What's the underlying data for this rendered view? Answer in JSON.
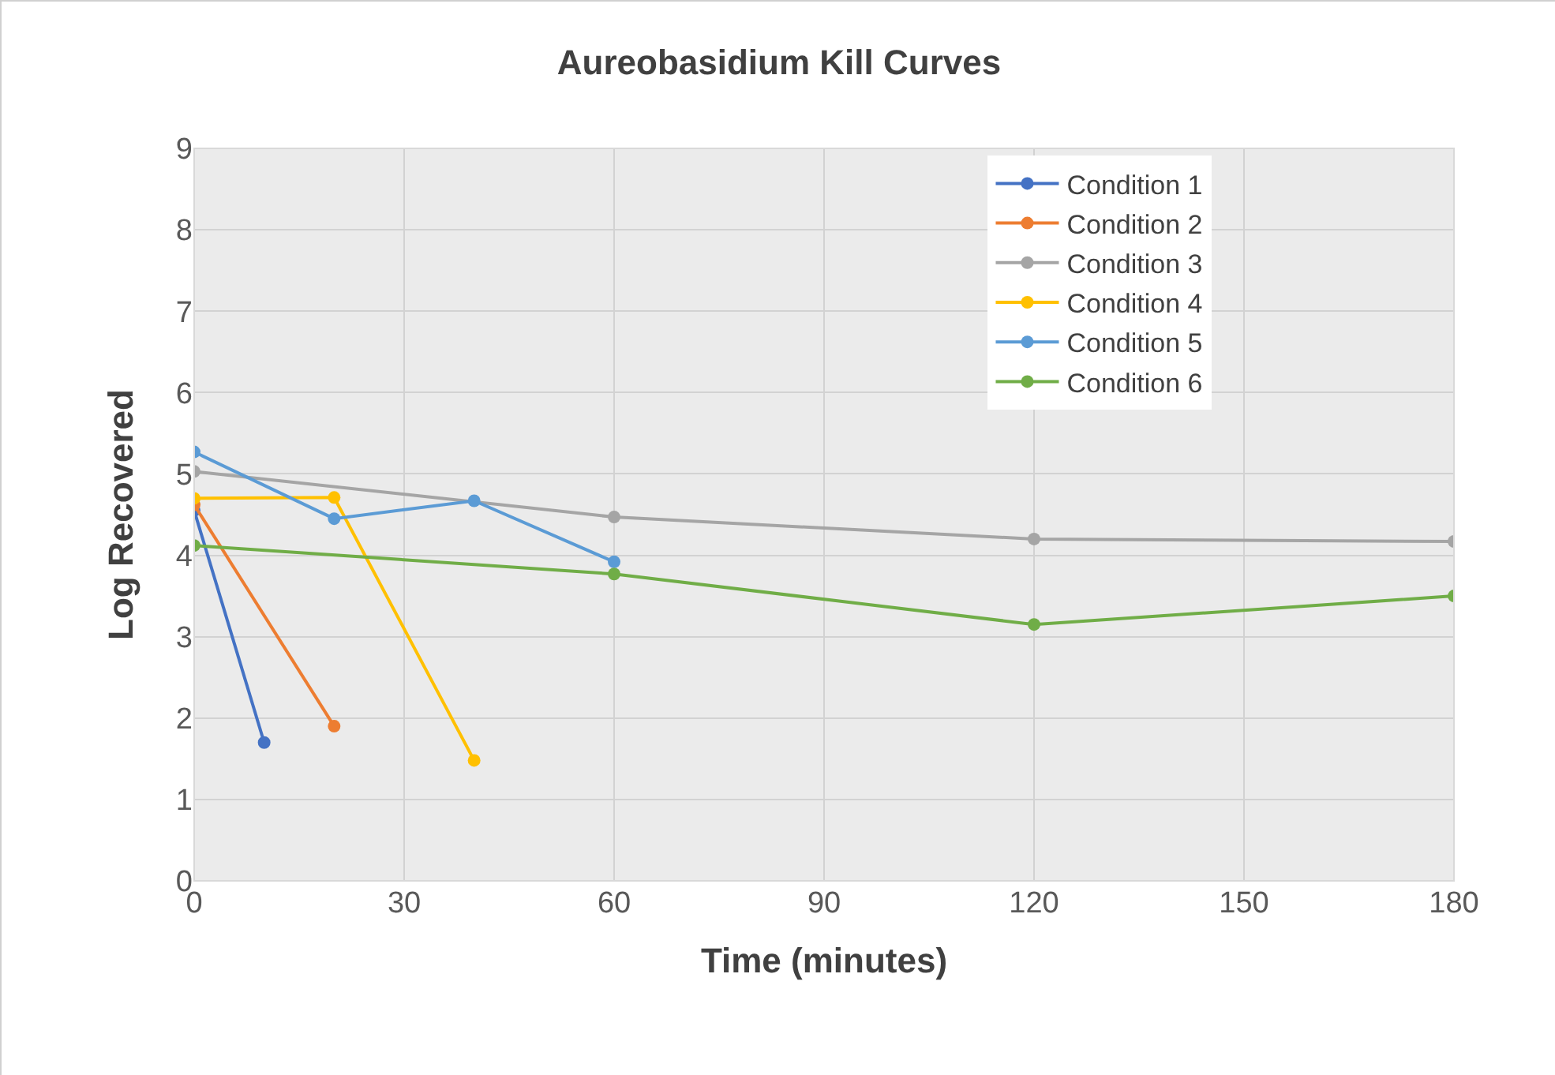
{
  "chart_data": {
    "type": "line",
    "title": "Aureobasidium Kill Curves",
    "xlabel": "Time (minutes)",
    "ylabel": "Log Recovered",
    "xlim": [
      0,
      180
    ],
    "xticks": [
      0,
      30,
      60,
      90,
      120,
      150,
      180
    ],
    "ylim": [
      0,
      9
    ],
    "yticks": [
      0,
      1,
      2,
      3,
      4,
      5,
      6,
      7,
      8,
      9
    ],
    "grid": true,
    "legend": "top right",
    "marker": "circle",
    "line_style": "solid",
    "series": [
      {
        "name": "Condition 1",
        "color": "#4472c4",
        "x": [
          0,
          10
        ],
        "values": [
          4.55,
          1.7
        ]
      },
      {
        "name": "Condition 2",
        "color": "#ed7d31",
        "x": [
          0,
          20
        ],
        "values": [
          4.62,
          1.9
        ]
      },
      {
        "name": "Condition 3",
        "color": "#a5a5a5",
        "x": [
          0,
          60,
          120,
          180
        ],
        "values": [
          5.03,
          4.47,
          4.2,
          4.17
        ]
      },
      {
        "name": "Condition 4",
        "color": "#ffc000",
        "x": [
          0,
          20,
          40
        ],
        "values": [
          4.7,
          4.71,
          1.48
        ]
      },
      {
        "name": "Condition 5",
        "color": "#5b9bd5",
        "x": [
          0,
          20,
          40,
          60
        ],
        "values": [
          5.27,
          4.45,
          4.67,
          3.92
        ]
      },
      {
        "name": "Condition 6",
        "color": "#70ad47",
        "x": [
          0,
          60,
          120,
          180
        ],
        "values": [
          4.12,
          3.77,
          3.15,
          3.5
        ]
      }
    ]
  }
}
